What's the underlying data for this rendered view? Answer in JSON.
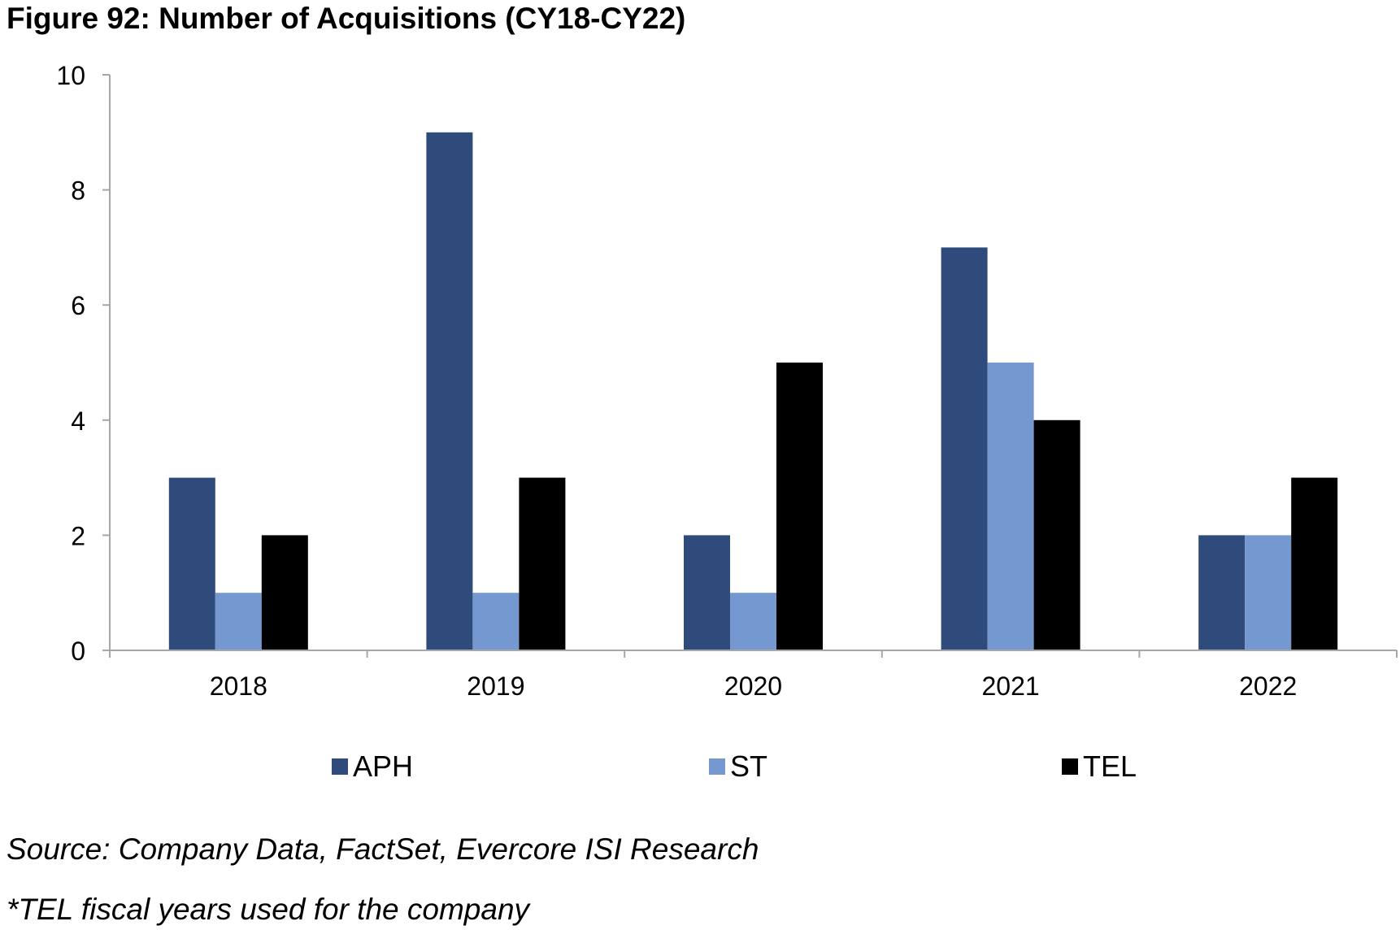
{
  "figure": {
    "title": "Figure 92: Number of Acquisitions (CY18-CY22)",
    "source": "Source: Company Data, FactSet, Evercore ISI Research",
    "footnote": "*TEL fiscal years used for the company"
  },
  "colors": {
    "axis": "#a6a6a6",
    "text": "#000000"
  },
  "chart_data": {
    "type": "bar",
    "title": "Figure 92: Number of Acquisitions (CY18-CY22)",
    "xlabel": "",
    "ylabel": "",
    "categories": [
      "2018",
      "2019",
      "2020",
      "2021",
      "2022"
    ],
    "series": [
      {
        "name": "APH",
        "color": "#2f4b7c",
        "values": [
          3,
          9,
          2,
          7,
          2
        ]
      },
      {
        "name": "ST",
        "color": "#7498cf",
        "values": [
          1,
          1,
          1,
          5,
          2
        ]
      },
      {
        "name": "TEL",
        "color": "#000000",
        "values": [
          2,
          3,
          5,
          4,
          3
        ]
      }
    ],
    "ylim": [
      0,
      10
    ],
    "yticks": [
      0,
      2,
      4,
      6,
      8,
      10
    ],
    "grid": false,
    "legend": "bottom"
  }
}
